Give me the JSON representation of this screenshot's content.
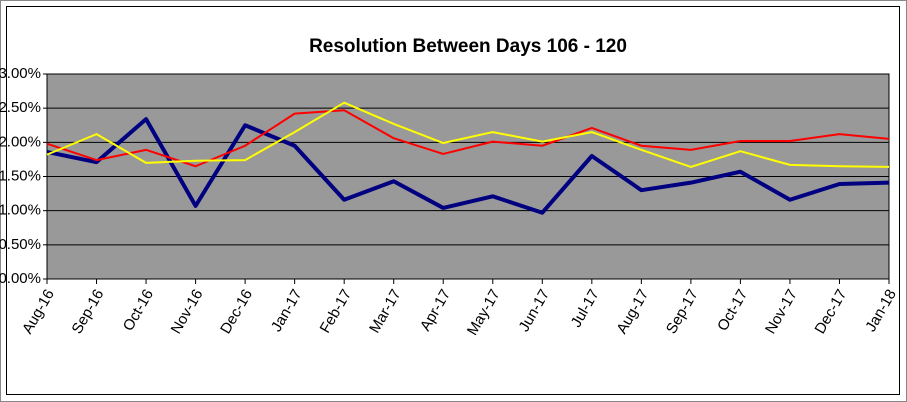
{
  "chart_data": {
    "type": "line",
    "title": "Resolution Between Days 106 - 120",
    "categories": [
      "Aug-16",
      "Sep-16",
      "Oct-16",
      "Nov-16",
      "Dec-16",
      "Jan-17",
      "Feb-17",
      "Mar-17",
      "Apr-17",
      "May-17",
      "Jun-17",
      "Jul-17",
      "Aug-17",
      "Sep-17",
      "Oct-17",
      "Nov-17",
      "Dec-17",
      "Jan-18"
    ],
    "series": [
      {
        "color": "#000080",
        "values": [
          1.86,
          1.71,
          2.34,
          1.07,
          2.25,
          1.95,
          1.16,
          1.43,
          1.04,
          1.21,
          0.97,
          1.8,
          1.3,
          1.41,
          1.57,
          1.16,
          1.39,
          1.41
        ]
      },
      {
        "color": "#ff0000",
        "values": [
          1.98,
          1.74,
          1.89,
          1.65,
          1.95,
          2.42,
          2.47,
          2.06,
          1.83,
          2.01,
          1.95,
          2.21,
          1.95,
          1.89,
          2.02,
          2.02,
          2.12,
          2.05
        ]
      },
      {
        "color": "#ffff00",
        "values": [
          1.82,
          2.12,
          1.7,
          1.73,
          1.74,
          2.15,
          2.58,
          2.27,
          1.99,
          2.15,
          2.01,
          2.15,
          1.89,
          1.64,
          1.87,
          1.67,
          1.65,
          1.64
        ]
      }
    ],
    "ylim": [
      0,
      3
    ],
    "yticks": [
      {
        "value": 0,
        "label": "0.00%"
      },
      {
        "value": 0.5,
        "label": "0.50%"
      },
      {
        "value": 1,
        "label": "1.00%"
      },
      {
        "value": 1.5,
        "label": "1.50%"
      },
      {
        "value": 2,
        "label": "2.00%"
      },
      {
        "value": 2.5,
        "label": "2.50%"
      },
      {
        "value": 3,
        "label": "3.00%"
      }
    ],
    "grid": true,
    "plot_background": "#999999"
  }
}
